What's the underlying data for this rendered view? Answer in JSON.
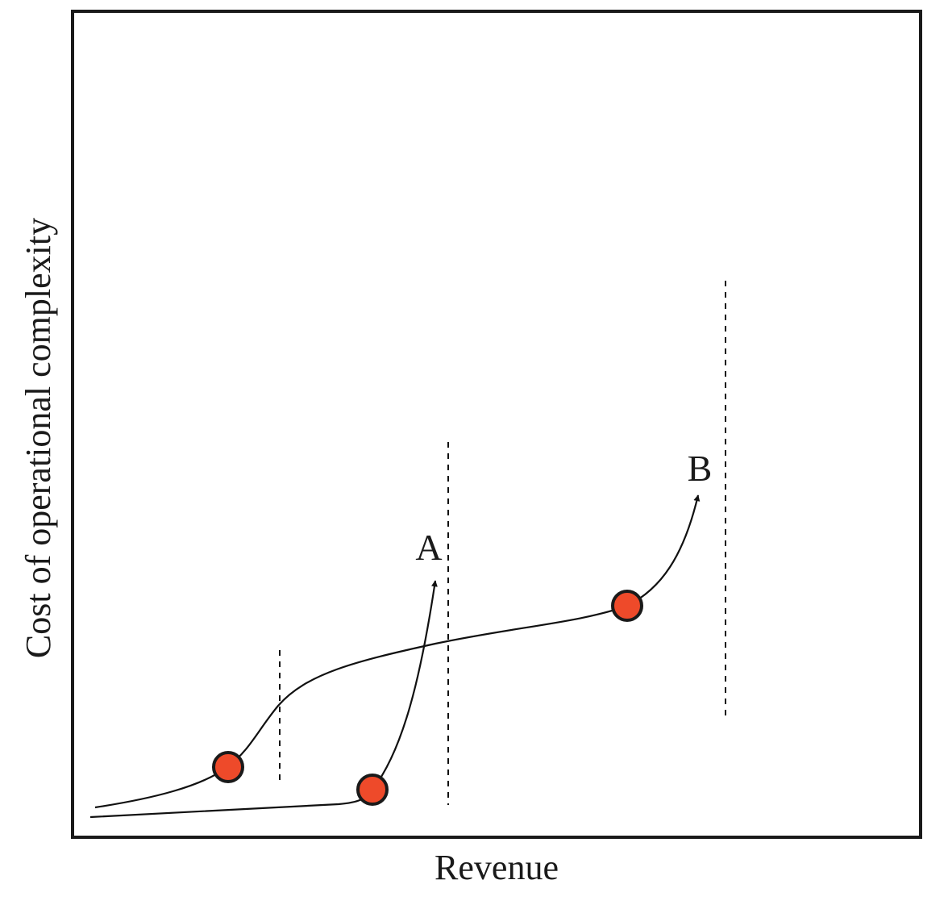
{
  "axes": {
    "x_label": "Revenue",
    "y_label": "Cost of operational complexity"
  },
  "paths": {
    "a_label": "A",
    "b_label": "B"
  },
  "colors": {
    "marker_fill": "#ee4a2a",
    "line": "#111111",
    "frame": "#1a1a1a"
  }
}
